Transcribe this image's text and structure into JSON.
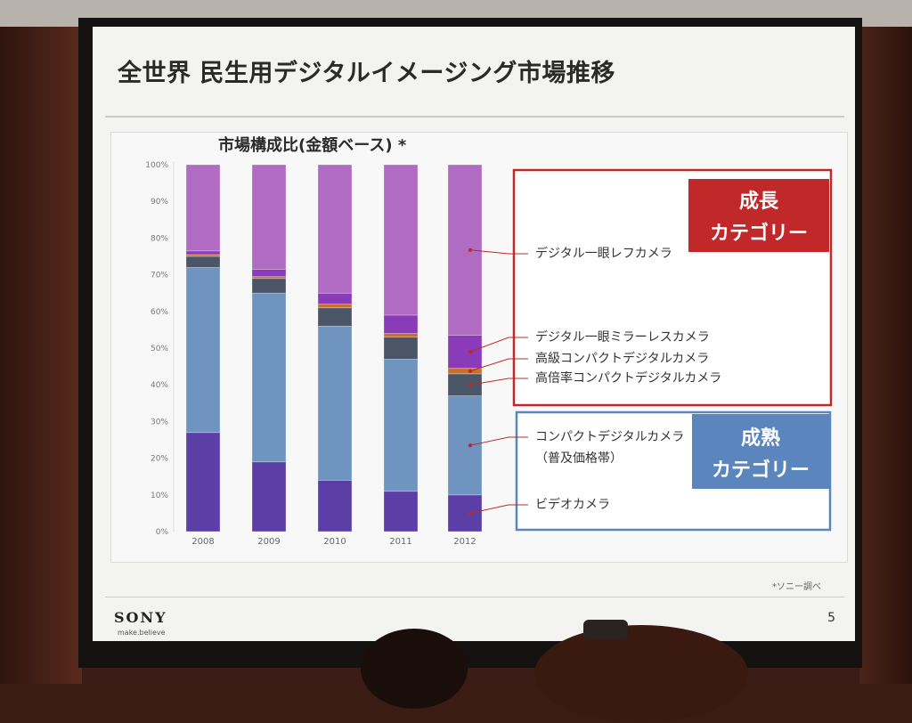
{
  "slide": {
    "title": "全世界 民生用デジタルイメージング市場推移",
    "footnote": "*ソニー調べ",
    "logo": "SONY",
    "tagline": "make.believe",
    "page_number": "5"
  },
  "colors": {
    "video": "#5b3fa6",
    "compact_mass": "#6f94c0",
    "high_zoom": "#4a5668",
    "premium_compact": "#c9702a",
    "mirrorless": "#8a3cb8",
    "dslr": "#b06bc2",
    "growth_box": "#c0282a",
    "mature_box": "#5b86bd"
  },
  "chart_data": {
    "type": "bar",
    "stacked": true,
    "title": "市場構成比(金額ベース) *",
    "categories": [
      "2008",
      "2009",
      "2010",
      "2011",
      "2012"
    ],
    "ylim": [
      0,
      100
    ],
    "yticks": [
      "0%",
      "10%",
      "20%",
      "30%",
      "40%",
      "50%",
      "60%",
      "70%",
      "80%",
      "90%",
      "100%"
    ],
    "series": [
      {
        "name": "ビデオカメラ",
        "color_key": "video",
        "values": [
          27,
          19,
          14,
          11,
          10
        ]
      },
      {
        "name": "コンパクトデジタルカメラ(普及価格帯)",
        "color_key": "compact_mass",
        "values": [
          45,
          46,
          42,
          36,
          27
        ]
      },
      {
        "name": "高倍率コンパクトデジタルカメラ",
        "color_key": "high_zoom",
        "values": [
          3,
          4,
          5,
          6,
          6
        ]
      },
      {
        "name": "高級コンパクトデジタルカメラ",
        "color_key": "premium_compact",
        "values": [
          0.5,
          0.5,
          1,
          1,
          1.5
        ]
      },
      {
        "name": "デジタル一眼ミラーレスカメラ",
        "color_key": "mirrorless",
        "values": [
          1,
          2,
          3,
          5,
          9
        ]
      },
      {
        "name": "デジタル一眼レフカメラ",
        "color_key": "dslr",
        "values": [
          23.5,
          28.5,
          35,
          41,
          46.5
        ]
      }
    ],
    "annotations": [
      {
        "label": "デジタル一眼レフカメラ",
        "series_index": 5
      },
      {
        "label": "デジタル一眼ミラーレスカメラ",
        "series_index": 4
      },
      {
        "label": "高級コンパクトデジタルカメラ",
        "series_index": 3
      },
      {
        "label": "高倍率コンパクトデジタルカメラ",
        "series_index": 2
      },
      {
        "label": "コンパクトデジタルカメラ",
        "label2": "（普及価格帯）",
        "series_index": 1
      },
      {
        "label": "ビデオカメラ",
        "series_index": 0
      }
    ],
    "groups": [
      {
        "label_line1": "成長",
        "label_line2": "カテゴリー",
        "color_key": "growth_box"
      },
      {
        "label_line1": "成熟",
        "label_line2": "カテゴリー",
        "color_key": "mature_box"
      }
    ]
  }
}
